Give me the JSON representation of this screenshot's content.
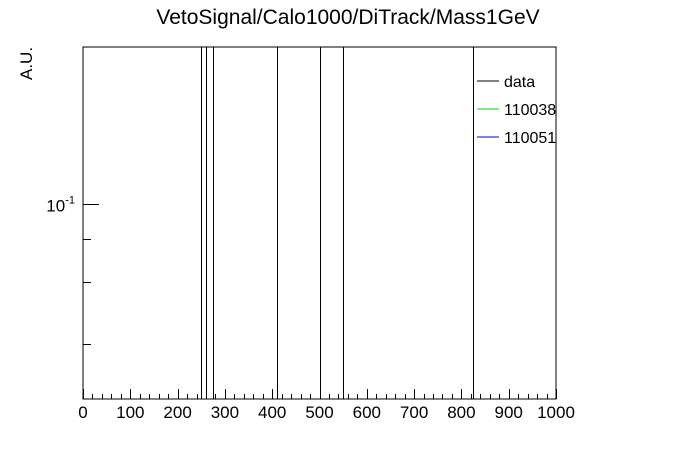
{
  "chart_data": {
    "type": "line",
    "title": "VetoSignal/Calo1000/DiTrack/Mass1GeV",
    "xlabel": "",
    "ylabel": "A.U.",
    "xlim": [
      0,
      1000
    ],
    "x_ticks": [
      0,
      100,
      200,
      300,
      400,
      500,
      600,
      700,
      800,
      900,
      1000
    ],
    "x_tick_labels": [
      "0",
      "100",
      "200",
      "300",
      "400",
      "500",
      "600",
      "700",
      "800",
      "900",
      "1000"
    ],
    "y_scale": "log",
    "ylim": [
      0.028,
      0.28
    ],
    "y_major_ticks": [
      0.1
    ],
    "y_tick_labels": [
      "10^-1"
    ],
    "y_minor_ticks": [
      0.04,
      0.06,
      0.08
    ],
    "grid": false,
    "legend_position": "top-right",
    "series": [
      {
        "name": "data",
        "color": "#000000",
        "x": [
          250,
          260,
          275,
          410,
          500,
          550,
          825
        ]
      },
      {
        "name": "110038",
        "color": "#00cc00",
        "x": []
      },
      {
        "name": "110051",
        "color": "#0000cc",
        "x": []
      }
    ]
  }
}
